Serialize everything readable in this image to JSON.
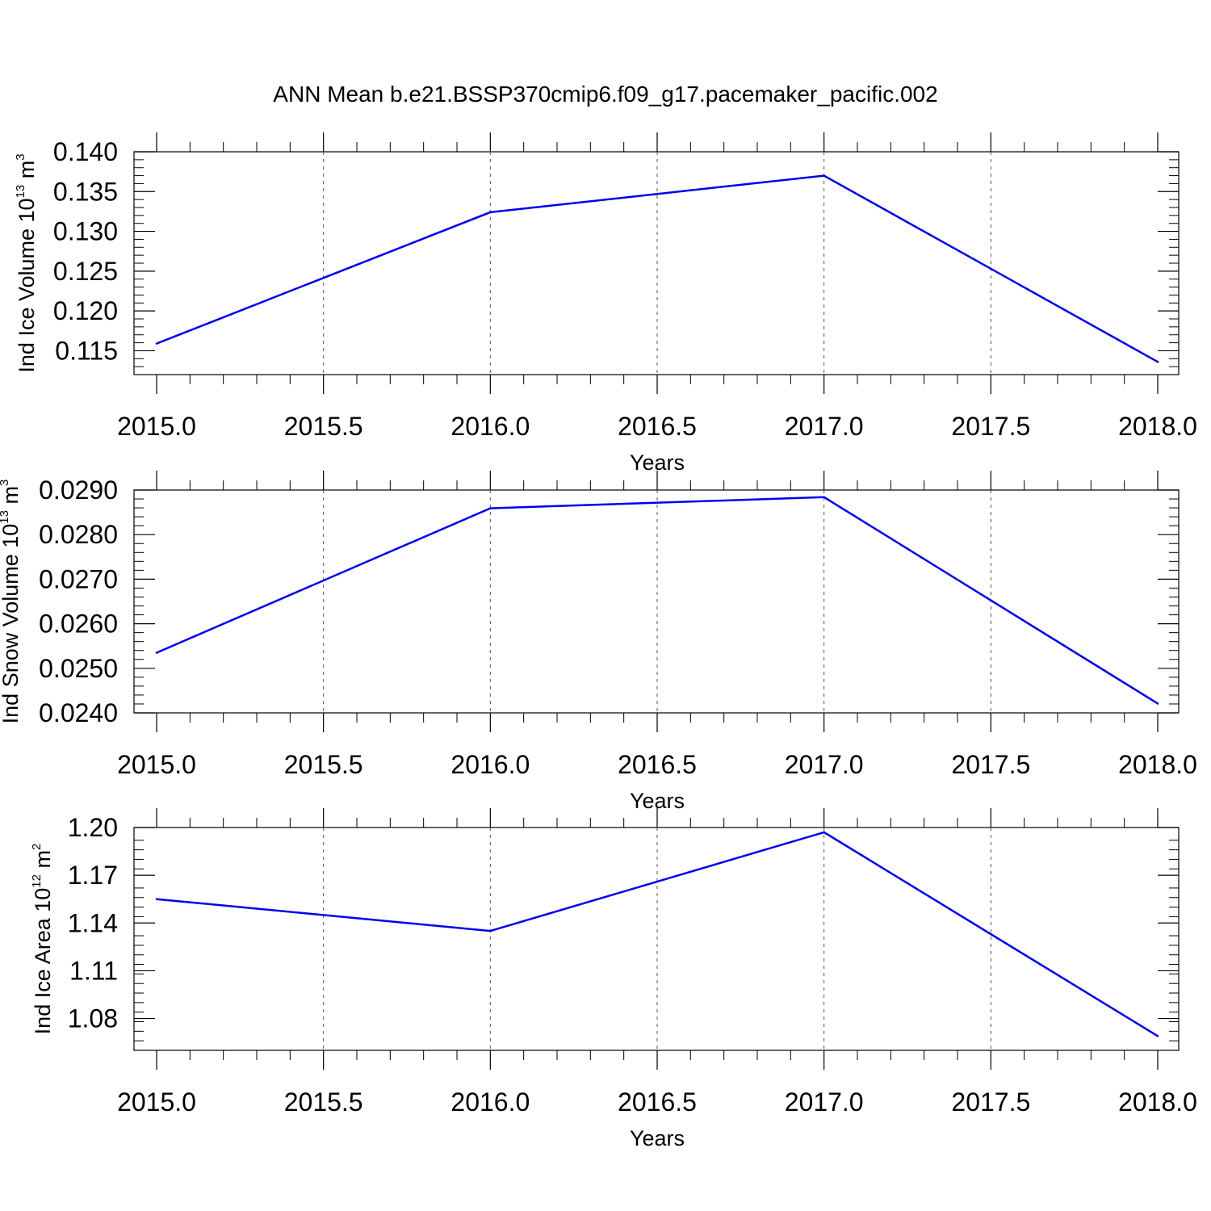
{
  "figure": {
    "title": "ANN Mean b.e21.BSSP370cmip6.f09_g17.pacemaker_pacific.002",
    "line_color": "#0000ee"
  },
  "chart_data": [
    {
      "type": "line",
      "xlabel": "Years",
      "ylabel": "Ind Ice Volume 10",
      "ylabel_exp": "13",
      "ylabel_unit": "m",
      "ylabel_unit_exp": "3",
      "xlim": [
        2015.0,
        2018.0
      ],
      "ylim": [
        0.112,
        0.14
      ],
      "x_ticks": [
        2015.0,
        2015.5,
        2016.0,
        2016.5,
        2017.0,
        2017.5,
        2018.0
      ],
      "x_tick_labels": [
        "2015.0",
        "2015.5",
        "2016.0",
        "2016.5",
        "2017.0",
        "2017.5",
        "2018.0"
      ],
      "y_ticks": [
        0.115,
        0.12,
        0.125,
        0.13,
        0.135,
        0.14
      ],
      "y_tick_labels": [
        "0.115",
        "0.120",
        "0.125",
        "0.130",
        "0.135",
        "0.140"
      ],
      "grid": "vertical dashed",
      "series": [
        {
          "x": [
            2015,
            2016,
            2017,
            2018
          ],
          "y": [
            0.1159,
            0.1324,
            0.137,
            0.1136
          ]
        }
      ]
    },
    {
      "type": "line",
      "xlabel": "Years",
      "ylabel": "Ind Snow Volume 10",
      "ylabel_exp": "13",
      "ylabel_unit": "m",
      "ylabel_unit_exp": "3",
      "xlim": [
        2015.0,
        2018.0
      ],
      "ylim": [
        0.024,
        0.029
      ],
      "x_ticks": [
        2015.0,
        2015.5,
        2016.0,
        2016.5,
        2017.0,
        2017.5,
        2018.0
      ],
      "x_tick_labels": [
        "2015.0",
        "2015.5",
        "2016.0",
        "2016.5",
        "2017.0",
        "2017.5",
        "2018.0"
      ],
      "y_ticks": [
        0.024,
        0.025,
        0.026,
        0.027,
        0.028,
        0.029
      ],
      "y_tick_labels": [
        "0.0240",
        "0.0250",
        "0.0260",
        "0.0270",
        "0.0280",
        "0.0290"
      ],
      "grid": "vertical dashed",
      "series": [
        {
          "x": [
            2015,
            2016,
            2017,
            2018
          ],
          "y": [
            0.02535,
            0.02859,
            0.02884,
            0.02421
          ]
        }
      ]
    },
    {
      "type": "line",
      "xlabel": "Years",
      "ylabel": "Ind Ice Area 10",
      "ylabel_exp": "12",
      "ylabel_unit": "m",
      "ylabel_unit_exp": "2",
      "xlim": [
        2015.0,
        2018.0
      ],
      "ylim": [
        1.06,
        1.2
      ],
      "x_ticks": [
        2015.0,
        2015.5,
        2016.0,
        2016.5,
        2017.0,
        2017.5,
        2018.0
      ],
      "x_tick_labels": [
        "2015.0",
        "2015.5",
        "2016.0",
        "2016.5",
        "2017.0",
        "2017.5",
        "2018.0"
      ],
      "y_ticks": [
        1.08,
        1.11,
        1.14,
        1.17,
        1.2
      ],
      "y_tick_labels": [
        "1.08",
        "1.11",
        "1.14",
        "1.17",
        "1.20"
      ],
      "grid": "vertical dashed",
      "series": [
        {
          "x": [
            2015,
            2016,
            2017,
            2018
          ],
          "y": [
            1.155,
            1.135,
            1.197,
            1.069
          ]
        }
      ]
    }
  ]
}
